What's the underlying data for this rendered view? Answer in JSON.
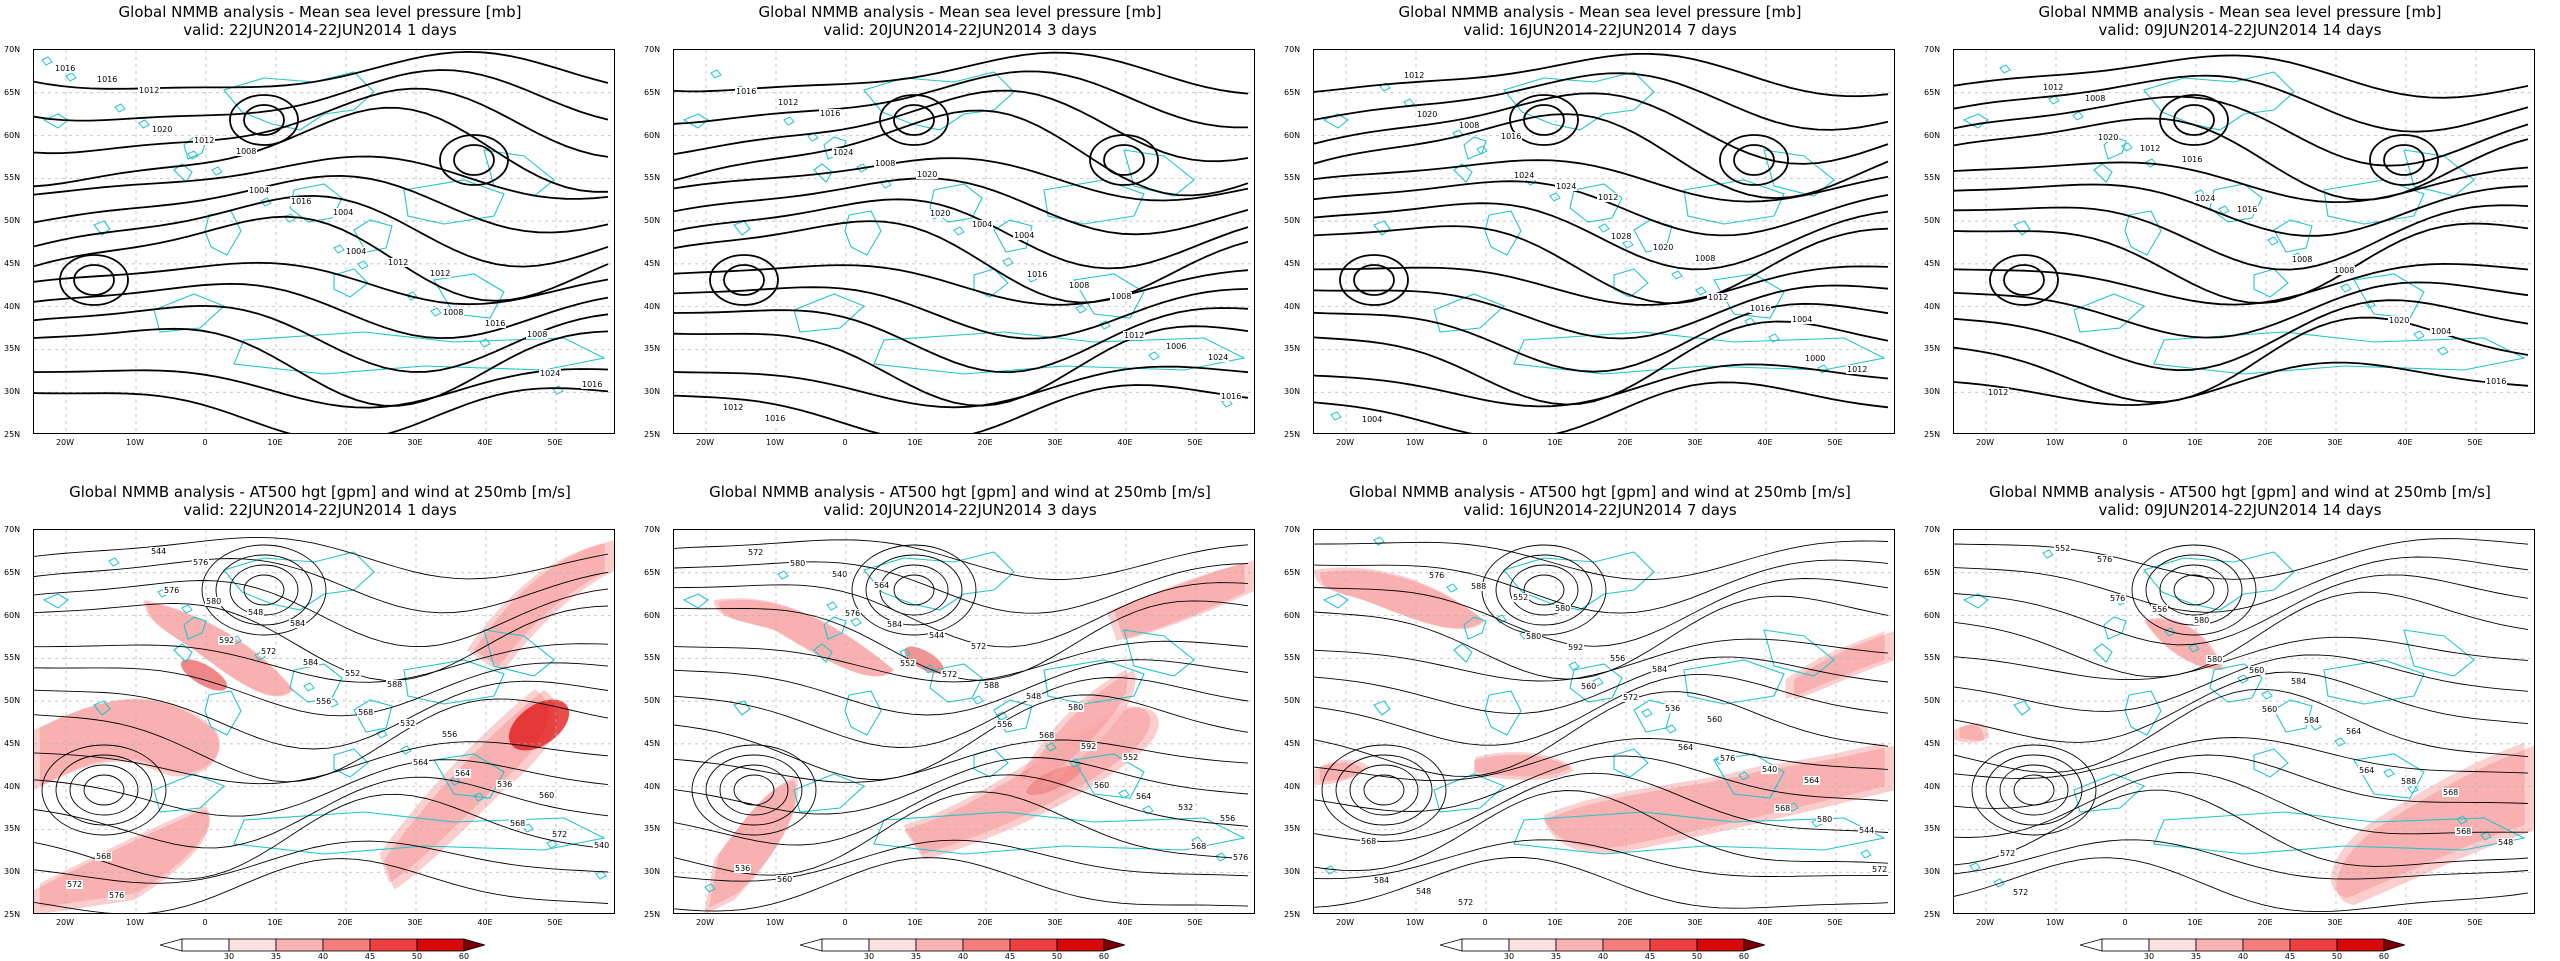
{
  "row_titles": {
    "mslp": "Global NMMB analysis - Mean sea level pressure [mb]",
    "at500": "Global NMMB analysis - AT500 hgt [gpm] and wind at 250mb [m/s]"
  },
  "valid": [
    "valid: 22JUN2014-22JUN2014  1 days",
    "valid: 20JUN2014-22JUN2014  3 days",
    "valid: 16JUN2014-22JUN2014  7 days",
    "valid: 09JUN2014-22JUN2014  14 days"
  ],
  "colors": {
    "contour": "#000000",
    "coast": "#22c5cc",
    "grid": "#b0b0b0",
    "jet_light": "#fbc4c4",
    "jet_mid": "#f27a7a",
    "jet_dark": "#e01010"
  },
  "chart_data": [
    {
      "type": "contour-map-panel",
      "title": "Global NMMB analysis - Mean sea level pressure [mb]",
      "subtitle": "valid: 22JUN2014-22JUN2014  1 days",
      "x_ticks": [
        "20W",
        "10W",
        "0",
        "10E",
        "20E",
        "30E",
        "40E",
        "50E"
      ],
      "y_ticks": [
        "70N",
        "65N",
        "60N",
        "55N",
        "50N",
        "45N",
        "40N",
        "35N",
        "30N",
        "25N"
      ],
      "contour_labels": [
        "1016",
        "1020",
        "1004",
        "1004",
        "1008",
        "1024",
        "1016",
        "1012",
        "1016",
        "1012",
        "1016",
        "1016",
        "1012",
        "1008",
        "1004",
        "1012",
        "1008"
      ]
    },
    {
      "type": "contour-map-panel",
      "title": "Global NMMB analysis - Mean sea level pressure [mb]",
      "subtitle": "valid: 20JUN2014-22JUN2014  3 days",
      "x_ticks": [
        "20W",
        "10W",
        "0",
        "10E",
        "20E",
        "30E",
        "40E",
        "50E"
      ],
      "y_ticks": [
        "70N",
        "65N",
        "60N",
        "55N",
        "50N",
        "45N",
        "40N",
        "35N",
        "30N",
        "25N"
      ],
      "contour_labels": [
        "1016",
        "1024",
        "1020",
        "1016",
        "1012",
        "1016",
        "1012",
        "1008",
        "1004",
        "1008",
        "1006",
        "1012",
        "1016",
        "1020",
        "1004",
        "1008",
        "1024",
        "1016"
      ]
    },
    {
      "type": "contour-map-panel",
      "title": "Global NMMB analysis - Mean sea level pressure [mb]",
      "subtitle": "valid: 16JUN2014-22JUN2014  7 days",
      "x_ticks": [
        "20W",
        "10W",
        "0",
        "10E",
        "20E",
        "30E",
        "40E",
        "50E"
      ],
      "y_ticks": [
        "70N",
        "65N",
        "60N",
        "55N",
        "50N",
        "45N",
        "40N",
        "35N",
        "30N",
        "25N"
      ],
      "contour_labels": [
        "1020",
        "1024",
        "1028",
        "1012",
        "1000",
        "1004",
        "1008",
        "1024",
        "1020",
        "1016",
        "1012",
        "1012",
        "1016",
        "1012",
        "1008",
        "1004"
      ]
    },
    {
      "type": "contour-map-panel",
      "title": "Global NMMB analysis - Mean sea level pressure [mb]",
      "subtitle": "valid: 09JUN2014-22JUN2014  14 days",
      "x_ticks": [
        "20W",
        "10W",
        "0",
        "10E",
        "20E",
        "30E",
        "40E",
        "50E"
      ],
      "y_ticks": [
        "70N",
        "65N",
        "60N",
        "55N",
        "50N",
        "45N",
        "40N",
        "35N",
        "30N",
        "25N"
      ],
      "contour_labels": [
        "1020",
        "1024",
        "1008",
        "1020",
        "1016",
        "1012",
        "1012",
        "1016",
        "1008",
        "1004",
        "1012",
        "1008",
        "1016"
      ]
    },
    {
      "type": "contour-map-panel",
      "title": "Global NMMB analysis - AT500 hgt [gpm] and wind at 250mb [m/s]",
      "subtitle": "valid: 22JUN2014-22JUN2014  1 days",
      "x_ticks": [
        "20W",
        "10W",
        "0",
        "10E",
        "20E",
        "30E",
        "40E",
        "50E"
      ],
      "y_ticks": [
        "70N",
        "65N",
        "60N",
        "55N",
        "50N",
        "45N",
        "40N",
        "35N",
        "30N",
        "25N"
      ],
      "contour_labels": [
        "592",
        "556",
        "564",
        "568",
        "572",
        "576",
        "572",
        "568",
        "564",
        "572",
        "576",
        "580",
        "584",
        "532",
        "536",
        "540",
        "544",
        "548",
        "552",
        "556",
        "560",
        "568",
        "576",
        "584",
        "588"
      ],
      "colorbar": {
        "ticks": [
          "30",
          "35",
          "40",
          "45",
          "50",
          "60"
        ]
      }
    },
    {
      "type": "contour-map-panel",
      "title": "Global NMMB analysis - AT500 hgt [gpm] and wind at 250mb [m/s]",
      "subtitle": "valid: 20JUN2014-22JUN2014  3 days",
      "x_ticks": [
        "20W",
        "10W",
        "0",
        "10E",
        "20E",
        "30E",
        "40E",
        "50E"
      ],
      "y_ticks": [
        "70N",
        "65N",
        "60N",
        "55N",
        "50N",
        "45N",
        "40N",
        "35N",
        "30N",
        "25N"
      ],
      "contour_labels": [
        "552",
        "556",
        "560",
        "568",
        "572",
        "576",
        "572",
        "568",
        "564",
        "576",
        "580",
        "584",
        "588",
        "592",
        "532",
        "536",
        "540",
        "544",
        "548",
        "552",
        "556",
        "560",
        "564",
        "572",
        "580"
      ],
      "colorbar": {
        "ticks": [
          "30",
          "35",
          "40",
          "45",
          "50",
          "60"
        ]
      }
    },
    {
      "type": "contour-map-panel",
      "title": "Global NMMB analysis - AT500 hgt [gpm] and wind at 250mb [m/s]",
      "subtitle": "valid: 16JUN2014-22JUN2014  7 days",
      "x_ticks": [
        "20W",
        "10W",
        "0",
        "10E",
        "20E",
        "30E",
        "40E",
        "50E"
      ],
      "y_ticks": [
        "70N",
        "65N",
        "60N",
        "55N",
        "50N",
        "45N",
        "40N",
        "35N",
        "30N",
        "25N"
      ],
      "contour_labels": [
        "560",
        "564",
        "568",
        "572",
        "576",
        "580",
        "572",
        "576",
        "580",
        "584",
        "588",
        "592",
        "536",
        "540",
        "544",
        "548",
        "552",
        "556",
        "560",
        "564",
        "568",
        "572",
        "580",
        "584"
      ],
      "colorbar": {
        "ticks": [
          "30",
          "35",
          "40",
          "45",
          "50",
          "60"
        ]
      }
    },
    {
      "type": "contour-map-panel",
      "title": "Global NMMB analysis - AT500 hgt [gpm] and wind at 250mb [m/s]",
      "subtitle": "valid: 09JUN2014-22JUN2014  14 days",
      "x_ticks": [
        "20W",
        "10W",
        "0",
        "10E",
        "20E",
        "30E",
        "40E",
        "50E"
      ],
      "y_ticks": [
        "70N",
        "65N",
        "60N",
        "55N",
        "50N",
        "45N",
        "40N",
        "35N",
        "30N",
        "25N"
      ],
      "contour_labels": [
        "560",
        "564",
        "568",
        "572",
        "576",
        "580",
        "584",
        "588",
        "548",
        "552",
        "556",
        "560",
        "564",
        "568",
        "572",
        "576",
        "580",
        "584"
      ],
      "colorbar": {
        "ticks": [
          "30",
          "35",
          "40",
          "45",
          "50",
          "60"
        ]
      }
    }
  ]
}
